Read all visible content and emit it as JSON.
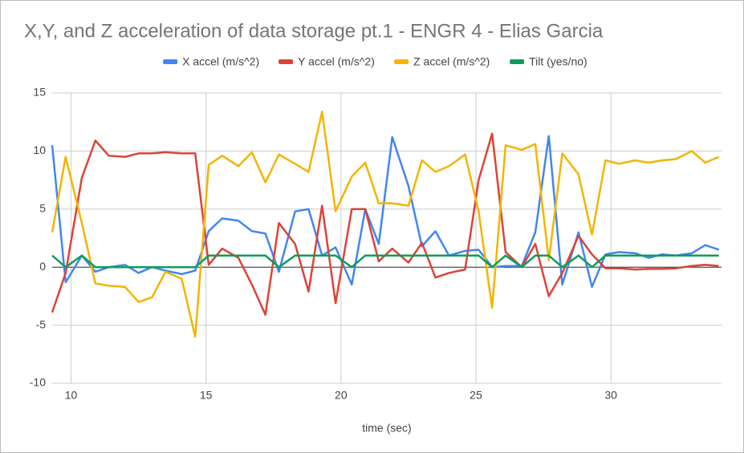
{
  "chart_data": {
    "type": "line",
    "title": "X,Y, and Z acceleration of data storage pt.1 - ENGR 4 - Elias Garcia",
    "x_label": "time (sec)",
    "x": [
      9.3,
      9.8,
      10.4,
      10.9,
      11.4,
      12.0,
      12.5,
      13.0,
      13.5,
      14.1,
      14.6,
      15.1,
      15.6,
      16.2,
      16.7,
      17.2,
      17.7,
      18.3,
      18.8,
      19.3,
      19.8,
      20.4,
      20.9,
      21.4,
      21.9,
      22.5,
      23.0,
      23.5,
      24.0,
      24.6,
      25.1,
      25.6,
      26.1,
      26.7,
      27.2,
      27.7,
      28.2,
      28.8,
      29.3,
      29.8,
      30.3,
      30.9,
      31.4,
      31.9,
      32.4,
      33.0,
      33.5,
      34.0
    ],
    "series": [
      {
        "name": "X accel (m/s^2)",
        "color": "#4285f4",
        "values": [
          10.5,
          -1.3,
          1.0,
          -0.4,
          0.0,
          0.2,
          -0.5,
          0.0,
          -0.3,
          -0.6,
          -0.3,
          3.1,
          4.2,
          4.0,
          3.1,
          2.9,
          -0.4,
          4.8,
          5.0,
          1.0,
          1.7,
          -1.5,
          5.0,
          2.0,
          11.2,
          7.0,
          1.8,
          3.1,
          1.0,
          1.4,
          1.5,
          0.0,
          0.1,
          0.1,
          3.0,
          11.3,
          -1.5,
          3.0,
          -1.7,
          1.1,
          1.3,
          1.2,
          0.8,
          1.1,
          1.0,
          1.2,
          1.9,
          1.5
        ]
      },
      {
        "name": "Y accel (m/s^2)",
        "color": "#db4437",
        "values": [
          -3.9,
          -0.5,
          7.7,
          10.9,
          9.6,
          9.5,
          9.8,
          9.8,
          9.9,
          9.8,
          9.8,
          0.2,
          1.6,
          0.8,
          -1.5,
          -4.1,
          3.8,
          2.0,
          -2.1,
          5.3,
          -3.1,
          5.0,
          5.0,
          0.5,
          1.6,
          0.4,
          2.1,
          -0.9,
          -0.5,
          -0.2,
          7.5,
          11.5,
          1.3,
          0.0,
          2.0,
          -2.5,
          -0.5,
          2.7,
          1.1,
          -0.1,
          -0.1,
          -0.2,
          -0.15,
          -0.15,
          -0.1,
          0.1,
          0.2,
          0.1
        ]
      },
      {
        "name": "Z accel (m/s^2)",
        "color": "#f4b400",
        "values": [
          3.0,
          9.5,
          3.8,
          -1.4,
          -1.6,
          -1.7,
          -3.0,
          -2.6,
          -0.4,
          -1.0,
          -6.0,
          8.8,
          9.6,
          8.7,
          9.9,
          7.3,
          9.7,
          8.9,
          8.2,
          13.4,
          4.8,
          7.8,
          9.0,
          5.5,
          5.5,
          5.3,
          9.2,
          8.2,
          8.7,
          9.7,
          4.8,
          -3.5,
          10.5,
          10.1,
          10.6,
          0.6,
          9.8,
          8.0,
          2.8,
          9.2,
          8.9,
          9.2,
          9.0,
          9.2,
          9.3,
          10.0,
          9.0,
          9.5
        ]
      },
      {
        "name": "Tilt (yes/no)",
        "color": "#0f9d58",
        "values": [
          1,
          0,
          1,
          0,
          0,
          0,
          0,
          0,
          0,
          0,
          0,
          1,
          1,
          1,
          1,
          1,
          0,
          1,
          1,
          1,
          1,
          0,
          1,
          1,
          1,
          1,
          1,
          1,
          1,
          1,
          1,
          0,
          1,
          0,
          1,
          1,
          0,
          1,
          0,
          1,
          1,
          1,
          1,
          1,
          1,
          1,
          1,
          1
        ]
      }
    ],
    "xlim": [
      9.3,
      34.1
    ],
    "xticks": [
      10,
      15,
      20,
      25,
      30
    ],
    "ylim": [
      -10,
      15
    ],
    "yticks": [
      -10,
      -5,
      0,
      5,
      10,
      15
    ],
    "grid": true,
    "legend": "top"
  }
}
